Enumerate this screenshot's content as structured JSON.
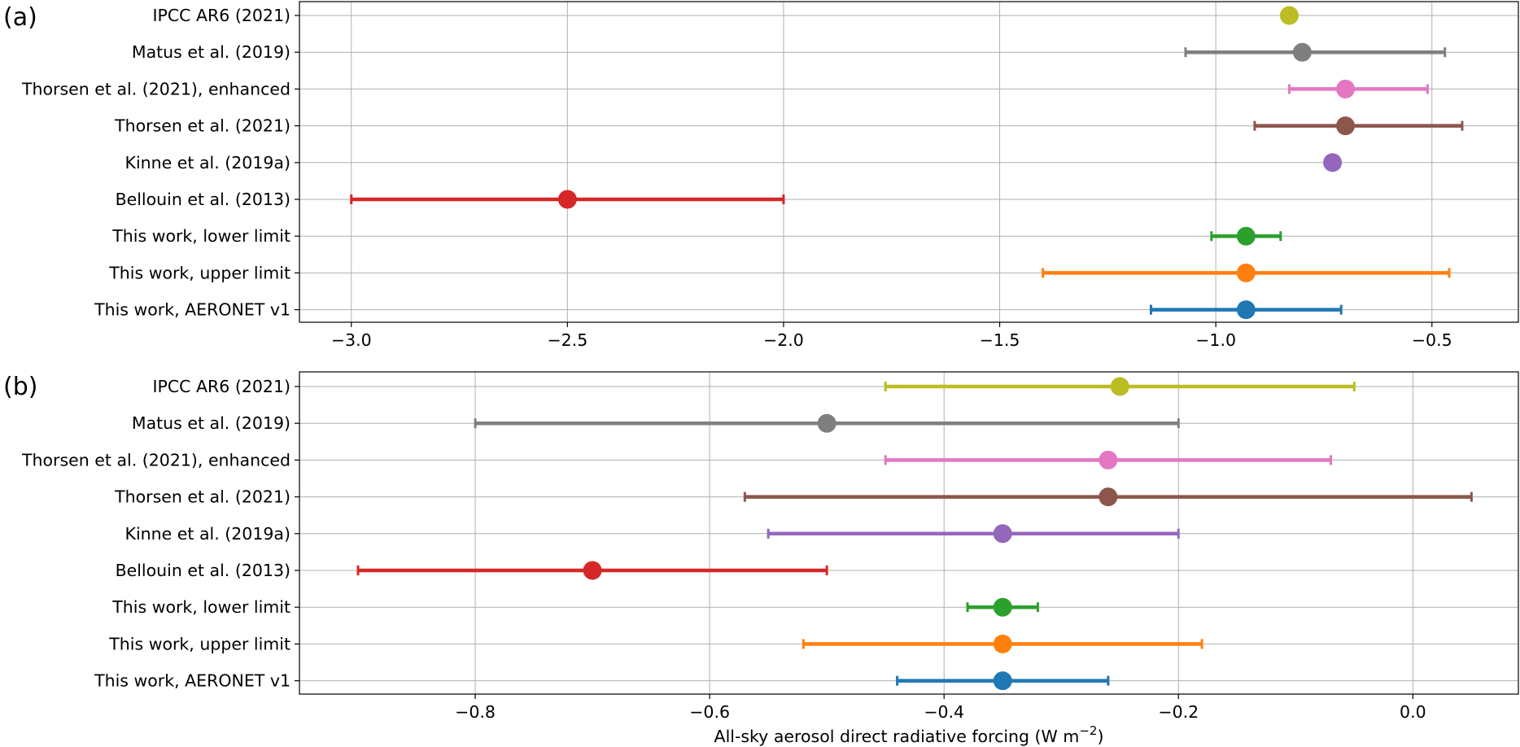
{
  "chart_data": [
    {
      "type": "errorbar",
      "panel_label": "(a)",
      "categories": [
        "IPCC AR6 (2021)",
        "Matus et al. (2019)",
        "Thorsen et al. (2021), enhanced",
        "Thorsen et al. (2021)",
        "Kinne et al. (2019a)",
        "Bellouin et al. (2013)",
        "This work, lower limit",
        "This work, upper limit",
        "This work, AERONET v1"
      ],
      "points": [
        {
          "value": -0.83,
          "low": null,
          "high": null,
          "color": "#bcbd22"
        },
        {
          "value": -0.8,
          "low": -1.07,
          "high": -0.47,
          "color": "#7f7f7f"
        },
        {
          "value": -0.7,
          "low": -0.83,
          "high": -0.51,
          "color": "#e377c2"
        },
        {
          "value": -0.7,
          "low": -0.91,
          "high": -0.43,
          "color": "#8c564b"
        },
        {
          "value": -0.73,
          "low": null,
          "high": null,
          "color": "#9467bd"
        },
        {
          "value": -2.5,
          "low": -3.0,
          "high": -2.0,
          "color": "#d62728"
        },
        {
          "value": -0.93,
          "low": -1.01,
          "high": -0.85,
          "color": "#2ca02c"
        },
        {
          "value": -0.93,
          "low": -1.4,
          "high": -0.46,
          "color": "#ff7f0e"
        },
        {
          "value": -0.93,
          "low": -1.15,
          "high": -0.71,
          "color": "#1f77b4"
        }
      ],
      "xlim": [
        -3.12,
        -0.3
      ],
      "xticks": [
        -3.0,
        -2.5,
        -2.0,
        -1.5,
        -1.0,
        -0.5
      ],
      "xtick_labels": [
        "−3.0",
        "−2.5",
        "−2.0",
        "−1.5",
        "−1.0",
        "−0.5"
      ],
      "xlabel": "",
      "grid": true
    },
    {
      "type": "errorbar",
      "panel_label": "(b)",
      "categories": [
        "IPCC AR6 (2021)",
        "Matus et al. (2019)",
        "Thorsen et al. (2021), enhanced",
        "Thorsen et al. (2021)",
        "Kinne et al. (2019a)",
        "Bellouin et al. (2013)",
        "This work, lower limit",
        "This work, upper limit",
        "This work, AERONET v1"
      ],
      "points": [
        {
          "value": -0.25,
          "low": -0.45,
          "high": -0.05,
          "color": "#bcbd22"
        },
        {
          "value": -0.5,
          "low": -0.8,
          "high": -0.2,
          "color": "#7f7f7f"
        },
        {
          "value": -0.26,
          "low": -0.45,
          "high": -0.07,
          "color": "#e377c2"
        },
        {
          "value": -0.26,
          "low": -0.57,
          "high": 0.05,
          "color": "#8c564b"
        },
        {
          "value": -0.35,
          "low": -0.55,
          "high": -0.2,
          "color": "#9467bd"
        },
        {
          "value": -0.7,
          "low": -0.9,
          "high": -0.5,
          "color": "#d62728"
        },
        {
          "value": -0.35,
          "low": -0.38,
          "high": -0.32,
          "color": "#2ca02c"
        },
        {
          "value": -0.35,
          "low": -0.52,
          "high": -0.18,
          "color": "#ff7f0e"
        },
        {
          "value": -0.35,
          "low": -0.44,
          "high": -0.26,
          "color": "#1f77b4"
        }
      ],
      "xlim": [
        -0.95,
        0.09
      ],
      "xticks": [
        -0.8,
        -0.6,
        -0.4,
        -0.2,
        0.0
      ],
      "xtick_labels": [
        "−0.8",
        "−0.6",
        "−0.4",
        "−0.2",
        "0.0"
      ],
      "xlabel_main": "All-sky aerosol direct radiative forcing (W m",
      "xlabel_sup": "−2",
      "xlabel_end": ")",
      "grid": true
    }
  ]
}
